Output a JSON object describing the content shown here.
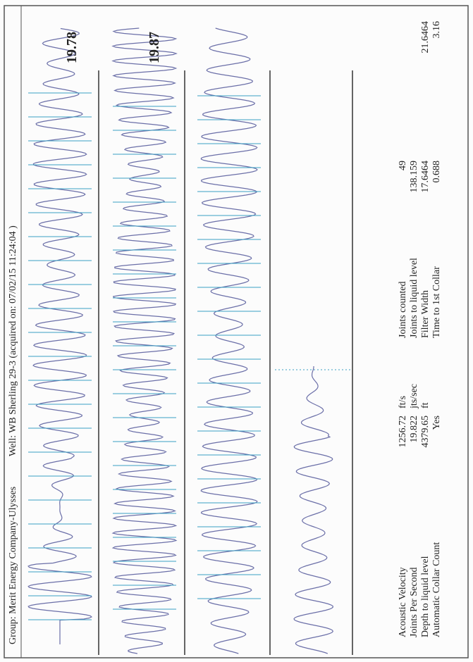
{
  "header": {
    "group": "Group: Merit Energy Company-Ulysses",
    "well": "Well: WB Sherling 29-3 (acquired on: 07/02/15 11:24:04 )"
  },
  "traces": [
    {
      "label": "19.78"
    },
    {
      "label": "19.87"
    }
  ],
  "results": {
    "left": [
      {
        "label": "Acoustic Velocity",
        "value": "1256.72",
        "unit": "ft/s"
      },
      {
        "label": "Joints Per Second",
        "value": "19.822",
        "unit": "jts/sec"
      },
      {
        "label": "Depth to liquid level",
        "value": "4379.65",
        "unit": "ft"
      },
      {
        "label": "Automatic Collar Count",
        "value": "Yes"
      }
    ],
    "right": [
      {
        "label": "Joints counted",
        "value": "49"
      },
      {
        "label": "Joints to liquid level",
        "value": "138.159"
      },
      {
        "label": "Filter Width",
        "value": "17.6464",
        "extra": "21.6464"
      },
      {
        "label": "Time to 1st Collar",
        "value": "0.688",
        "extra": "3.16"
      }
    ]
  }
}
